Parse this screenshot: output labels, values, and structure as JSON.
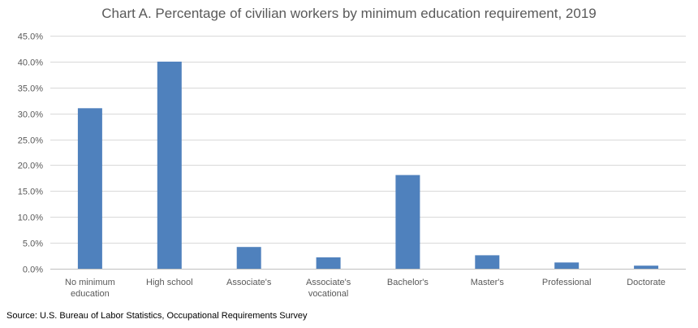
{
  "chart_data": {
    "type": "bar",
    "title": "Chart A. Percentage of civilian workers by minimum education requirement, 2019",
    "source": "Source: U.S. Bureau of Labor Statistics, Occupational Requirements Survey",
    "categories": [
      [
        "No minimum",
        "education"
      ],
      [
        "High school"
      ],
      [
        "Associate's"
      ],
      [
        "Associate's",
        "vocational"
      ],
      [
        "Bachelor's"
      ],
      [
        "Master's"
      ],
      [
        "Professional"
      ],
      [
        "Doctorate"
      ]
    ],
    "values": [
      31.0,
      40.0,
      4.2,
      2.2,
      18.1,
      2.6,
      1.2,
      0.6
    ],
    "yticks": [
      "0.0%",
      "5.0%",
      "10.0%",
      "15.0%",
      "20.0%",
      "25.0%",
      "30.0%",
      "35.0%",
      "40.0%",
      "45.0%"
    ],
    "ylim": [
      0,
      45
    ],
    "ystep": 5,
    "grid": true,
    "bar_color": "#4f81bd",
    "grid_color": "#d9d9d9",
    "axis_color": "#bfbfbf"
  }
}
